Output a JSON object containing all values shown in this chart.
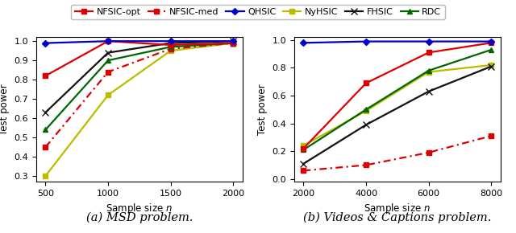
{
  "plot_a": {
    "x": [
      500,
      1000,
      1500,
      2000
    ],
    "NFSIC_opt": [
      0.82,
      1.0,
      0.98,
      0.99
    ],
    "NFSIC_med": [
      0.45,
      0.84,
      0.96,
      0.99
    ],
    "QHSIC": [
      0.99,
      1.0,
      1.0,
      1.0
    ],
    "NyHSIC": [
      0.3,
      0.72,
      0.95,
      0.99
    ],
    "FHSIC": [
      0.63,
      0.94,
      0.99,
      1.0
    ],
    "RDC": [
      0.54,
      0.9,
      0.97,
      0.99
    ],
    "xlabel": "Sample size $n$",
    "ylabel": "Test power",
    "caption": "(a) MSD problem.",
    "ylim": [
      0.27,
      1.02
    ],
    "yticks": [
      0.3,
      0.4,
      0.5,
      0.6,
      0.7,
      0.8,
      0.9,
      1.0
    ]
  },
  "plot_b": {
    "x": [
      2000,
      4000,
      6000,
      8000
    ],
    "NFSIC_opt": [
      0.22,
      0.69,
      0.91,
      0.98
    ],
    "NFSIC_med": [
      0.06,
      0.1,
      0.19,
      0.31
    ],
    "QHSIC": [
      0.98,
      0.99,
      0.99,
      0.99
    ],
    "NyHSIC": [
      0.24,
      0.49,
      0.77,
      0.82
    ],
    "FHSIC": [
      0.11,
      0.39,
      0.63,
      0.81
    ],
    "RDC": [
      0.21,
      0.5,
      0.78,
      0.93
    ],
    "xlabel": "Sample size $n$",
    "ylabel": "Test power",
    "caption": "(b) Videos & Captions problem.",
    "ylim": [
      -0.02,
      1.02
    ],
    "yticks": [
      0.0,
      0.2,
      0.4,
      0.6,
      0.8,
      1.0
    ]
  },
  "colors": {
    "NFSIC_opt": "#dd0000",
    "NFSIC_med": "#dd0000",
    "QHSIC": "#0000cc",
    "NyHSIC": "#bbbb00",
    "FHSIC": "#111111",
    "RDC": "#006600"
  },
  "background": "#ffffff",
  "axis_fontsize": 8.5,
  "legend_fontsize": 8.0,
  "tick_fontsize": 8.0,
  "caption_fontsize": 10.5,
  "lw": 1.6
}
